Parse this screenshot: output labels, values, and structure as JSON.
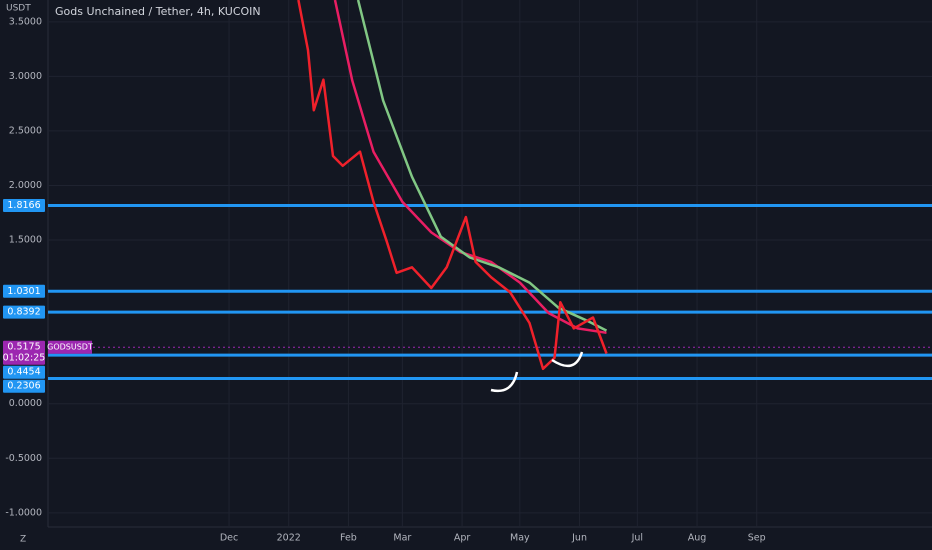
{
  "chart_data": {
    "type": "line",
    "title": "Gods Unchained / Tether, 4h, KUCOIN",
    "y_label": "USDT",
    "axis_button": "Z",
    "symbol": "GODSUSDT",
    "countdown": "01:02:25",
    "last_price": 0.5175,
    "last_price_color": "#9c27b0",
    "levels": [
      1.8166,
      1.0301,
      0.8392,
      0.4454,
      0.2306
    ],
    "level_color": "#2196f3",
    "xlim": [
      -94,
      365
    ],
    "xticks": [
      {
        "value": 0,
        "label": "Dec"
      },
      {
        "value": 31,
        "label": "2022"
      },
      {
        "value": 62,
        "label": "Feb"
      },
      {
        "value": 90,
        "label": "Mar"
      },
      {
        "value": 121,
        "label": "Apr"
      },
      {
        "value": 151,
        "label": "May"
      },
      {
        "value": 182,
        "label": "Jun"
      },
      {
        "value": 212,
        "label": "Jul"
      },
      {
        "value": 243,
        "label": "Aug"
      },
      {
        "value": 274,
        "label": "Sep"
      }
    ],
    "ylim": [
      -1.13,
      3.7
    ],
    "yticks": [
      {
        "value": 3.5,
        "label": "3.5000"
      },
      {
        "value": 3,
        "label": "3.0000"
      },
      {
        "value": 2.5,
        "label": "2.5000"
      },
      {
        "value": 2,
        "label": "2.0000"
      },
      {
        "value": 1.5,
        "label": "1.5000"
      },
      {
        "value": 0,
        "label": "0.0000"
      },
      {
        "value": -0.5,
        "label": "-0.5000"
      },
      {
        "value": -1,
        "label": "-1.0000"
      }
    ],
    "grid": true,
    "series": [
      {
        "color": "#e91e63",
        "x": [
          55,
          64,
          75,
          90,
          105,
          120,
          136,
          151,
          166,
          181,
          196
        ],
        "values": [
          3.7,
          2.96,
          2.31,
          1.85,
          1.57,
          1.39,
          1.3,
          1.11,
          0.83,
          0.69,
          0.65
        ]
      },
      {
        "color": "#81c784",
        "x": [
          67,
          80,
          95,
          110,
          125,
          140,
          156,
          171,
          186,
          196
        ],
        "values": [
          3.7,
          2.78,
          2.08,
          1.53,
          1.34,
          1.25,
          1.11,
          0.88,
          0.76,
          0.67
        ]
      },
      {
        "color": "#f0212b",
        "x": [
          36,
          41,
          44,
          49,
          54,
          59,
          68,
          75,
          82,
          87,
          95,
          105,
          113,
          123,
          128,
          136,
          146,
          156,
          163,
          169,
          172,
          179,
          189,
          196
        ],
        "values": [
          3.7,
          3.24,
          2.69,
          2.97,
          2.27,
          2.18,
          2.31,
          1.85,
          1.48,
          1.2,
          1.25,
          1.06,
          1.25,
          1.71,
          1.3,
          1.16,
          1.02,
          0.74,
          0.32,
          0.42,
          0.93,
          0.69,
          0.79,
          0.46
        ]
      }
    ]
  }
}
